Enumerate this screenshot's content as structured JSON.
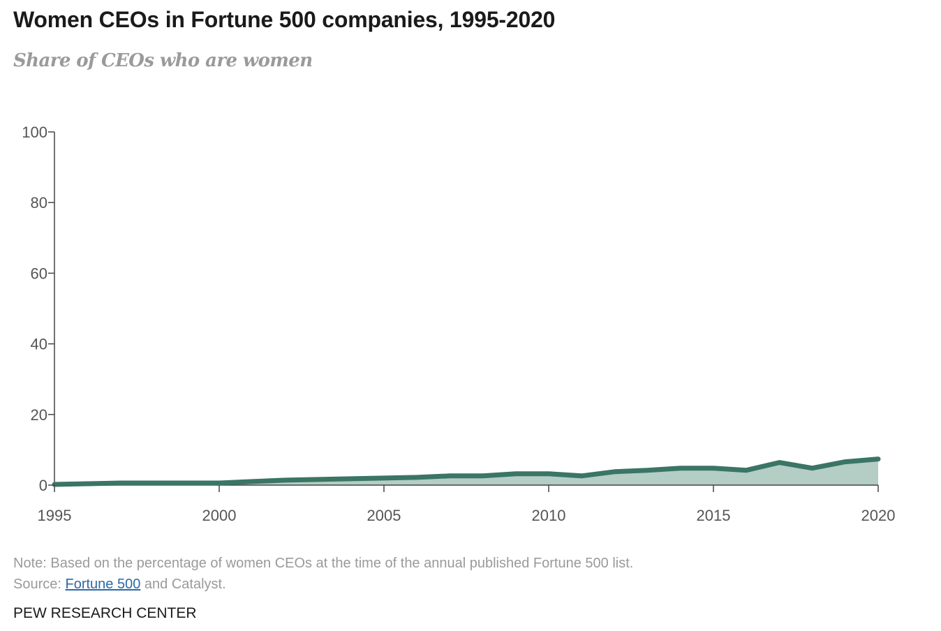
{
  "header": {
    "title": "Women CEOs in Fortune 500 companies, 1995-2020",
    "subtitle": "Share of CEOs who are women"
  },
  "footer": {
    "note": "Note: Based on the percentage of women CEOs at the time of the annual published Fortune 500 list.",
    "source_prefix": "Source: ",
    "source_link": "Fortune 500",
    "source_suffix": " and Catalyst.",
    "brand": "PEW RESEARCH CENTER"
  },
  "colors": {
    "line": "#3a7565",
    "area": "#b4cdc5",
    "link": "#2b6aa6"
  },
  "chart_data": {
    "type": "area",
    "title": "Women CEOs in Fortune 500 companies, 1995-2020",
    "subtitle": "Share of CEOs who are women",
    "x": [
      1995,
      1996,
      1997,
      1998,
      1999,
      2000,
      2001,
      2002,
      2003,
      2004,
      2005,
      2006,
      2007,
      2008,
      2009,
      2010,
      2011,
      2012,
      2013,
      2014,
      2015,
      2016,
      2017,
      2018,
      2019,
      2020
    ],
    "series": [
      {
        "values": [
          0.2,
          0.4,
          0.6,
          0.6,
          0.6,
          0.6,
          1.0,
          1.4,
          1.6,
          1.8,
          2.0,
          2.2,
          2.6,
          2.6,
          3.2,
          3.2,
          2.6,
          3.8,
          4.2,
          4.8,
          4.8,
          4.2,
          6.4,
          4.8,
          6.6,
          7.4
        ]
      }
    ],
    "xticks": [
      "1995",
      "2000",
      "2005",
      "2010",
      "2015",
      "2020"
    ],
    "yticks": [
      "0",
      "20",
      "40",
      "60",
      "80",
      "100"
    ],
    "xlim": [
      1995,
      2020
    ],
    "ylim": [
      0,
      100
    ],
    "xlabel": "",
    "ylabel": "",
    "grid": false,
    "legend": "none"
  }
}
